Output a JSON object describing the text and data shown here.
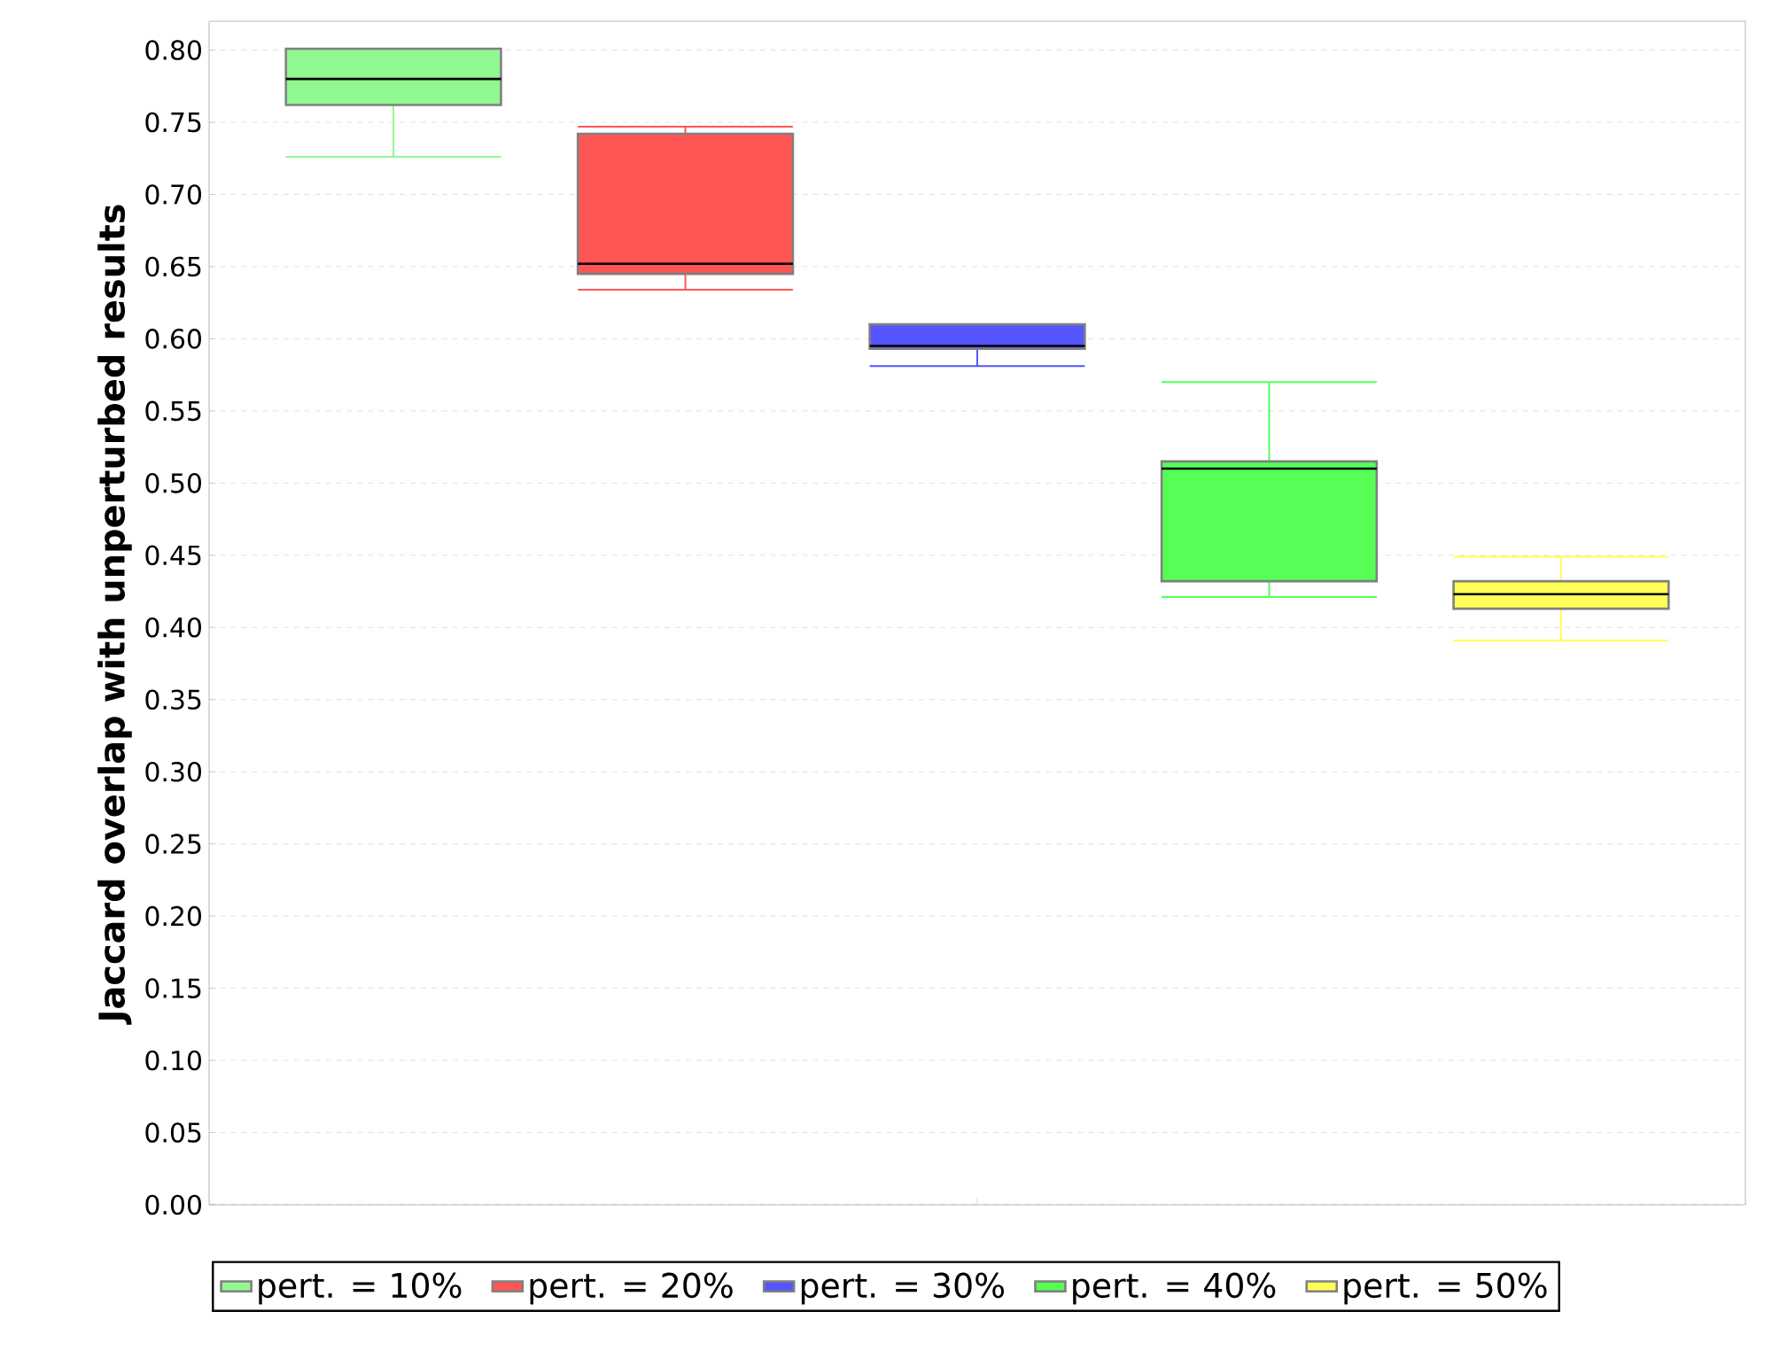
{
  "chart_data": {
    "type": "box",
    "ylabel": "Jaccard overlap with unperturbed results",
    "categories": [
      null
    ],
    "ylim": [
      0,
      0.82
    ],
    "yticks": [
      {
        "value": 0,
        "label": "0.00"
      },
      0.05,
      {
        "value": 0.1,
        "label": "0.10"
      },
      0.15,
      {
        "value": 0.2,
        "label": "0.20"
      },
      0.25,
      {
        "value": 0.3,
        "label": "0.30"
      },
      0.35,
      {
        "value": 0.4,
        "label": "0.40"
      },
      0.45,
      {
        "value": 0.5,
        "label": "0.50"
      },
      0.55,
      {
        "value": 0.6,
        "label": "0.60"
      },
      0.65,
      {
        "value": 0.7,
        "label": "0.70"
      },
      0.75,
      {
        "value": 0.8,
        "label": "0.80"
      }
    ],
    "grid": "y",
    "legend": "bottom",
    "tick_labels": "y",
    "series": [
      {
        "name": "pert. = 10%",
        "color": "#90f890",
        "boxes": [
          {
            "low": 0.726,
            "q1": 0.762,
            "median": 0.78,
            "q3": 0.801,
            "high": 0.801
          }
        ]
      },
      {
        "name": "pert. = 20%",
        "color": "#ff5555",
        "boxes": [
          {
            "low": 0.634,
            "q1": 0.645,
            "median": 0.652,
            "q3": 0.742,
            "high": 0.747
          }
        ]
      },
      {
        "name": "pert. = 30%",
        "color": "#5555ff",
        "boxes": [
          {
            "low": 0.581,
            "q1": 0.593,
            "median": 0.595,
            "q3": 0.61,
            "high": 0.61
          }
        ]
      },
      {
        "name": "pert. = 40%",
        "color": "#55ff55",
        "boxes": [
          {
            "low": 0.421,
            "q1": 0.432,
            "median": 0.51,
            "q3": 0.515,
            "high": 0.57
          }
        ]
      },
      {
        "name": "pert. = 50%",
        "color": "#ffff55",
        "boxes": [
          {
            "low": 0.391,
            "q1": 0.413,
            "median": 0.423,
            "q3": 0.432,
            "high": 0.449
          }
        ]
      }
    ]
  }
}
